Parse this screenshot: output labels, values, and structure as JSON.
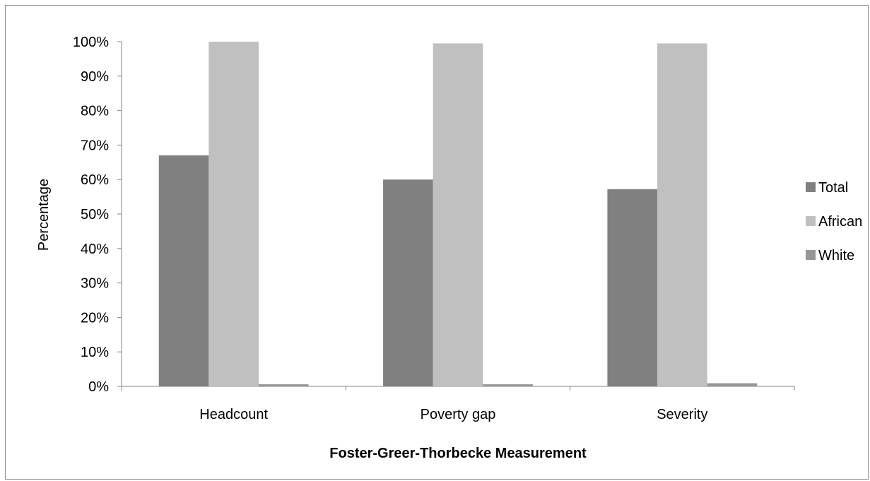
{
  "chart_data": {
    "type": "bar",
    "categories": [
      "Headcount",
      "Poverty gap",
      "Severity"
    ],
    "series": [
      {
        "name": "Total",
        "values": [
          67,
          60,
          57.2
        ],
        "color": "#808080"
      },
      {
        "name": "African",
        "values": [
          100,
          99.5,
          99.5
        ],
        "color": "#c0c0c0"
      },
      {
        "name": "White",
        "values": [
          0.6,
          0.6,
          0.9
        ],
        "color": "#969696"
      }
    ],
    "ylim": [
      0,
      100
    ],
    "yticks": [
      "0%",
      "10%",
      "20%",
      "30%",
      "40%",
      "50%",
      "60%",
      "70%",
      "80%",
      "90%",
      "100%"
    ],
    "xlabel": "Foster-Greer-Thorbecke Measurement",
    "ylabel": "Percentage",
    "grid": false,
    "legend_position": "right"
  }
}
